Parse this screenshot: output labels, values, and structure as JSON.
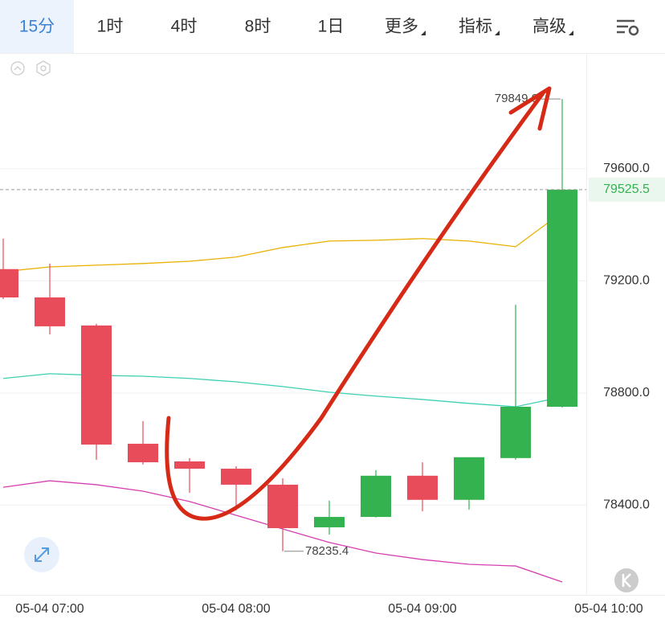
{
  "tabs": [
    "15分",
    "1时",
    "4时",
    "8时",
    "1日",
    "更多",
    "指标",
    "高级"
  ],
  "chart_data": {
    "type": "candlestick",
    "categories": [
      null,
      "05-04 07:00",
      null,
      null,
      null,
      "05-04 08:00",
      null,
      null,
      null,
      "05-04 09:00",
      null,
      null,
      null,
      "05-04 10:00"
    ],
    "open": [
      79242,
      79141,
      79041,
      78619,
      78556,
      78530,
      78473,
      78321,
      78358,
      78505,
      78419,
      78568,
      78751,
      null
    ],
    "high": [
      79351,
      79262,
      79047,
      78700,
      78568,
      78539,
      78496,
      78416,
      78525,
      78553,
      78571,
      79115,
      79849,
      null
    ],
    "low": [
      79135,
      79009,
      78562,
      78545,
      78444,
      78381,
      78235.4,
      78295,
      78356,
      78378,
      78384,
      78562,
      78748,
      null
    ],
    "close": [
      79141,
      79038,
      78616,
      78553,
      78530,
      78473,
      78318,
      78358,
      78505,
      78419,
      78571,
      78751,
      79525.5,
      null
    ],
    "up_color": "#33b24f",
    "down_color": "#e84b5a",
    "lines": [
      {
        "color": "#e8b100",
        "values": [
          79233,
          79250,
          79256,
          79262,
          79270,
          79285,
          79319,
          79342,
          79345,
          79351,
          79342,
          79322,
          79445,
          null
        ]
      },
      {
        "color": "#3fcfb3",
        "values": [
          78852,
          78869,
          78863,
          78860,
          78852,
          78840,
          78823,
          78803,
          78789,
          78777,
          78763,
          78751,
          78786,
          null
        ]
      },
      {
        "color": "#d63fb0",
        "values": [
          78464,
          78487,
          78473,
          78450,
          78413,
          78364,
          78315,
          78267,
          78229,
          78206,
          78189,
          78183,
          78126,
          null
        ]
      }
    ],
    "ylim": [
      78080,
      80007
    ],
    "yticks": [
      {
        "value": 78400,
        "label": "78400.0"
      },
      {
        "value": 78800,
        "label": "78800.0"
      },
      {
        "value": 79200,
        "label": "79200.0"
      },
      {
        "value": 79600,
        "label": "79600.0"
      }
    ],
    "grid": true,
    "max_label": {
      "value": 79849,
      "label": "79849.0"
    },
    "min_label": {
      "value": 78235.4,
      "label": "78235.4"
    },
    "last_price": {
      "value": 79525.5,
      "label": "79525.5"
    }
  }
}
